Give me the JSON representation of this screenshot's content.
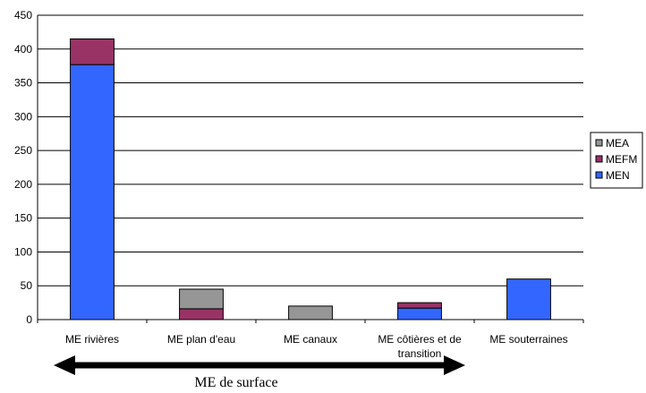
{
  "chart_data": {
    "type": "bar",
    "stacked": true,
    "categories": [
      "ME rivières",
      "ME plan d'eau",
      "ME canaux",
      "ME côtières et de transition",
      "ME souterraines"
    ],
    "series": [
      {
        "name": "MEN",
        "color": "#3366ff",
        "values": [
          377,
          0,
          0,
          17,
          60
        ]
      },
      {
        "name": "MEFM",
        "color": "#993366",
        "values": [
          38,
          16,
          0,
          8,
          0
        ]
      },
      {
        "name": "MEA",
        "color": "#969696",
        "values": [
          0,
          29,
          20,
          0,
          0
        ]
      }
    ],
    "ylim": [
      0,
      450
    ],
    "yticks": [
      0,
      50,
      100,
      150,
      200,
      250,
      300,
      350,
      400,
      450
    ],
    "grid": true,
    "legend": "right",
    "legend_order": [
      "MEA",
      "MEFM",
      "MEN"
    ],
    "annotation": "ME de surface",
    "annotation_arrow": "double-headed, spanning ME rivières to ME côtières et de transition"
  }
}
